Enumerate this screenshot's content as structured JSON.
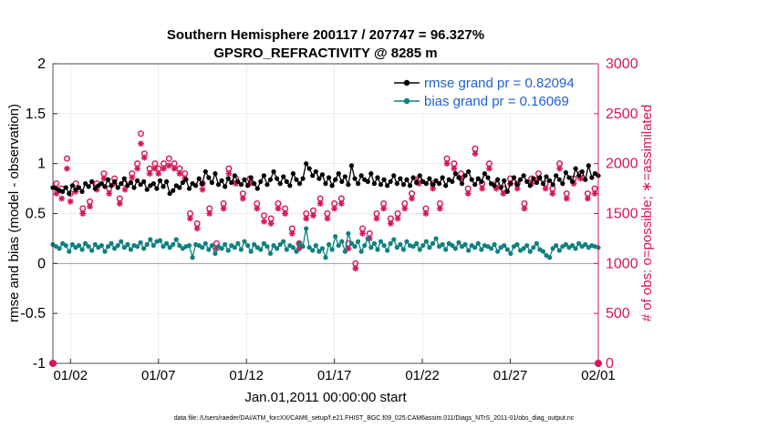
{
  "chart_data": {
    "type": "line",
    "title": "Southern Hemisphere 200117 / 207747 = 96.327%",
    "subtitle": "GPSRO_REFRACTIVITY @ 8285 m",
    "xlabel": "Jan.01,2011 00:00:00 start",
    "ylabel_left": "rmse and bias (model - observation)",
    "ylabel_right": "# of obs: o=possible; ∗=assimilated",
    "xlim": [
      0,
      31
    ],
    "ylim_left": [
      -1,
      2
    ],
    "ylim_right": [
      0,
      3000
    ],
    "xticks": [
      1,
      6,
      11,
      16,
      21,
      26,
      31
    ],
    "xtick_labels": [
      "01/02",
      "01/07",
      "01/12",
      "01/17",
      "01/22",
      "01/27",
      "02/01"
    ],
    "yticks_left": [
      -1,
      -0.5,
      0,
      0.5,
      1,
      1.5,
      2
    ],
    "ytick_labels_left": [
      "-1",
      "-0.5",
      "0",
      "0.5",
      "1",
      "1.5",
      "2"
    ],
    "yticks_right": [
      0,
      500,
      1000,
      1500,
      2000,
      2500,
      3000
    ],
    "ytick_labels_right": [
      "0",
      "500",
      "1000",
      "1500",
      "2000",
      "2500",
      "3000"
    ],
    "grid": true,
    "legend_position": "top-right",
    "series": [
      {
        "name": "rmse grand pr = 0.82094",
        "axis": "left",
        "color": "#000000",
        "values": [
          0.76,
          0.75,
          0.73,
          0.72,
          0.76,
          0.7,
          0.78,
          0.74,
          0.76,
          0.72,
          0.8,
          0.77,
          0.82,
          0.75,
          0.78,
          0.8,
          0.77,
          0.84,
          0.78,
          0.82,
          0.76,
          0.8,
          0.85,
          0.78,
          0.81,
          0.76,
          0.83,
          0.79,
          0.82,
          0.74,
          0.78,
          0.8,
          0.75,
          0.83,
          0.77,
          0.82,
          0.7,
          0.73,
          0.78,
          0.76,
          0.81,
          0.84,
          0.75,
          0.8,
          0.78,
          0.85,
          0.8,
          0.92,
          0.86,
          0.81,
          0.9,
          0.79,
          0.83,
          0.77,
          0.85,
          0.81,
          0.88,
          0.82,
          0.79,
          0.84,
          0.78,
          0.86,
          0.8,
          0.75,
          0.82,
          0.88,
          0.79,
          0.84,
          0.92,
          0.85,
          0.8,
          0.87,
          0.82,
          0.78,
          0.9,
          0.84,
          0.8,
          0.85,
          1.0,
          0.95,
          0.88,
          0.92,
          0.85,
          0.89,
          0.8,
          0.86,
          0.78,
          0.84,
          0.9,
          0.82,
          0.87,
          0.79,
          0.98,
          0.85,
          0.8,
          0.88,
          0.84,
          0.82,
          0.9,
          0.8,
          0.86,
          0.79,
          0.84,
          0.78,
          0.82,
          0.88,
          0.8,
          0.85,
          0.79,
          0.84,
          0.78,
          0.86,
          0.81,
          0.88,
          0.82,
          0.8,
          0.85,
          0.79,
          0.83,
          0.8,
          0.86,
          0.78,
          0.84,
          0.82,
          0.9,
          0.86,
          0.8,
          0.88,
          0.92,
          0.84,
          0.79,
          0.85,
          0.82,
          0.9,
          0.86,
          0.8,
          0.78,
          0.84,
          0.76,
          0.83,
          0.72,
          0.8,
          0.86,
          0.79,
          0.84,
          0.88,
          0.82,
          0.78,
          0.85,
          0.81,
          0.86,
          0.8,
          0.87,
          0.83,
          0.79,
          0.88,
          0.84,
          0.8,
          0.91,
          0.86,
          0.82,
          0.95,
          0.88,
          0.92,
          0.84,
          0.98,
          0.86,
          0.9,
          0.88
        ]
      },
      {
        "name": "bias grand pr = 0.16069",
        "axis": "left",
        "color": "#0f8080",
        "values": [
          0.19,
          0.17,
          0.15,
          0.2,
          0.18,
          0.12,
          0.19,
          0.16,
          0.18,
          0.14,
          0.2,
          0.17,
          0.13,
          0.19,
          0.16,
          0.18,
          0.12,
          0.17,
          0.2,
          0.15,
          0.18,
          0.22,
          0.16,
          0.19,
          0.14,
          0.18,
          0.17,
          0.21,
          0.15,
          0.19,
          0.24,
          0.18,
          0.22,
          0.23,
          0.17,
          0.2,
          0.16,
          0.19,
          0.24,
          0.18,
          0.15,
          0.17,
          0.18,
          0.06,
          0.19,
          0.18,
          0.16,
          0.2,
          0.14,
          0.18,
          0.1,
          0.17,
          0.15,
          0.19,
          0.13,
          0.18,
          0.16,
          0.2,
          0.14,
          0.22,
          0.18,
          0.12,
          0.19,
          0.16,
          0.14,
          0.2,
          0.17,
          0.1,
          0.18,
          0.15,
          0.19,
          0.22,
          0.14,
          0.18,
          0.16,
          0.12,
          0.2,
          0.17,
          0.35,
          0.16,
          0.13,
          0.18,
          0.12,
          0.15,
          0.06,
          0.19,
          0.14,
          0.27,
          0.18,
          0.22,
          0.12,
          0.3,
          0.2,
          0.17,
          0.22,
          0.12,
          0.18,
          0.25,
          0.16,
          0.2,
          0.14,
          0.22,
          0.18,
          0.13,
          0.2,
          0.24,
          0.16,
          0.19,
          0.14,
          0.22,
          0.18,
          0.17,
          0.2,
          0.14,
          0.18,
          0.22,
          0.16,
          0.2,
          0.25,
          0.17,
          0.19,
          0.14,
          0.2,
          0.18,
          0.15,
          0.21,
          0.17,
          0.19,
          0.13,
          0.18,
          0.16,
          0.2,
          0.14,
          0.18,
          0.17,
          0.15,
          0.19,
          0.12,
          0.16,
          0.18,
          0.14,
          0.1,
          0.17,
          0.19,
          0.13,
          0.15,
          0.18,
          0.12,
          0.16,
          0.2,
          0.14,
          0.12,
          0.08,
          0.06,
          0.15,
          0.18,
          0.13,
          0.17,
          0.19,
          0.16,
          0.18,
          0.15,
          0.2,
          0.17,
          0.19,
          0.16,
          0.18,
          0.17,
          0.16
        ]
      }
    ],
    "obs_possible": {
      "axis": "right",
      "marker": "circle",
      "color": "#d6145a",
      "x": [
        0.2,
        0.5,
        0.8,
        1.0,
        1.3,
        1.7,
        2.1,
        2.5,
        2.9,
        3.2,
        3.5,
        3.8,
        4.1,
        4.5,
        4.8,
        5.0,
        5.2,
        5.5,
        5.8,
        6.0,
        6.3,
        6.6,
        6.9,
        7.2,
        7.5,
        7.8,
        8.2,
        8.5,
        8.9,
        9.3,
        9.7,
        10.0,
        10.4,
        10.8,
        11.2,
        11.6,
        12.0,
        12.4,
        12.8,
        13.2,
        13.6,
        14.0,
        14.4,
        14.8,
        15.2,
        15.6,
        16.0,
        16.4,
        16.8,
        17.2,
        17.6,
        18.0,
        18.4,
        18.8,
        19.2,
        19.6,
        20.0,
        20.4,
        20.8,
        21.2,
        21.6,
        22.0,
        22.4,
        22.8,
        23.2,
        23.6,
        24.0,
        24.4,
        24.8,
        25.2,
        25.6,
        26.0,
        26.4,
        26.8,
        27.2,
        27.6,
        28.0,
        28.4,
        28.8,
        29.2,
        29.6,
        30.0,
        30.4,
        30.8
      ],
      "values": [
        1800,
        1750,
        2050,
        1700,
        1800,
        1550,
        1620,
        1800,
        1900,
        1750,
        1850,
        1650,
        1800,
        1900,
        2000,
        2300,
        2100,
        1950,
        2000,
        1950,
        2000,
        2050,
        2000,
        1950,
        1900,
        1500,
        1400,
        1800,
        1550,
        1200,
        1600,
        1950,
        1850,
        1700,
        1850,
        1600,
        1480,
        1450,
        1600,
        1550,
        1350,
        1200,
        1500,
        1530,
        1650,
        1500,
        1600,
        1650,
        1200,
        1000,
        1350,
        1300,
        1500,
        1600,
        1450,
        1500,
        1600,
        1700,
        1850,
        1550,
        1800,
        1600,
        2050,
        2000,
        1900,
        1750,
        2150,
        1800,
        2000,
        1800,
        1750,
        1850,
        1800,
        1600,
        1850,
        1900,
        1800,
        1750,
        2000,
        1700,
        1850,
        1900,
        1700,
        1750
      ]
    },
    "obs_assimilated": {
      "axis": "right",
      "marker": "asterisk",
      "color": "#d6145a",
      "x": [
        0.2,
        0.5,
        0.8,
        1.0,
        1.3,
        1.7,
        2.1,
        2.5,
        2.9,
        3.2,
        3.5,
        3.8,
        4.1,
        4.5,
        4.8,
        5.0,
        5.2,
        5.5,
        5.8,
        6.0,
        6.3,
        6.6,
        6.9,
        7.2,
        7.5,
        7.8,
        8.2,
        8.5,
        8.9,
        9.3,
        9.7,
        10.0,
        10.4,
        10.8,
        11.2,
        11.6,
        12.0,
        12.4,
        12.8,
        13.2,
        13.6,
        14.0,
        14.4,
        14.8,
        15.2,
        15.6,
        16.0,
        16.4,
        16.8,
        17.2,
        17.6,
        18.0,
        18.4,
        18.8,
        19.2,
        19.6,
        20.0,
        20.4,
        20.8,
        21.2,
        21.6,
        22.0,
        22.4,
        22.8,
        23.2,
        23.6,
        24.0,
        24.4,
        24.8,
        25.2,
        25.6,
        26.0,
        26.4,
        26.8,
        27.2,
        27.6,
        28.0,
        28.4,
        28.8,
        29.2,
        29.6,
        30.0,
        30.4,
        30.8
      ],
      "values": [
        1700,
        1650,
        1950,
        1620,
        1720,
        1500,
        1570,
        1740,
        1850,
        1700,
        1800,
        1600,
        1740,
        1860,
        1950,
        2200,
        2060,
        1900,
        1950,
        1900,
        1950,
        1980,
        1950,
        1900,
        1850,
        1450,
        1350,
        1740,
        1500,
        1150,
        1550,
        1900,
        1800,
        1650,
        1800,
        1550,
        1420,
        1400,
        1550,
        1500,
        1300,
        1150,
        1450,
        1480,
        1600,
        1450,
        1550,
        1600,
        1150,
        950,
        1300,
        1250,
        1450,
        1550,
        1400,
        1450,
        1550,
        1650,
        1800,
        1500,
        1750,
        1550,
        2000,
        1950,
        1850,
        1700,
        2100,
        1750,
        1950,
        1750,
        1700,
        1800,
        1750,
        1550,
        1800,
        1850,
        1750,
        1700,
        1950,
        1650,
        1800,
        1850,
        1650,
        1700
      ]
    }
  },
  "footnote": "data file: /Users/raeder/DAI/ATM_forcXX/CAM6_setup/f.e21.FHIST_BGC.f09_025.CAM6assim.011/Diags_NTrS_2011-01/obs_diag_output.nc"
}
